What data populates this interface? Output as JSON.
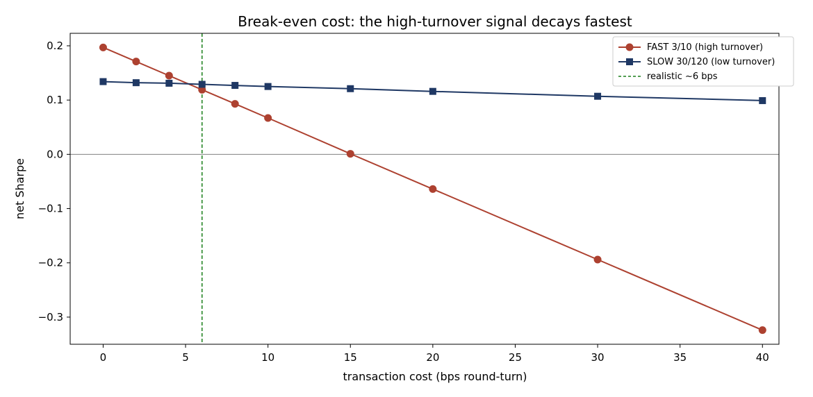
{
  "chart_data": {
    "type": "line",
    "title": "Break-even cost: the high-turnover signal decays fastest",
    "xlabel": "transaction cost (bps round-turn)",
    "ylabel": "net Sharpe",
    "xlim": [
      -2,
      41
    ],
    "ylim": [
      -0.35,
      0.223
    ],
    "x_ticks": [
      0,
      5,
      10,
      15,
      20,
      25,
      30,
      35,
      40
    ],
    "x_tick_labels": [
      "0",
      "5",
      "10",
      "15",
      "20",
      "25",
      "30",
      "35",
      "40"
    ],
    "y_ticks": [
      0.2,
      0.1,
      0.0,
      -0.1,
      -0.2,
      -0.3
    ],
    "y_tick_labels": [
      "0.2",
      "0.1",
      "0.0",
      "−0.1",
      "−0.2",
      "−0.3"
    ],
    "x": [
      0,
      2,
      4,
      6,
      8,
      10,
      15,
      20,
      30,
      40
    ],
    "series": [
      {
        "name": "FAST 3/10 (high turnover)",
        "color": "#ad4130",
        "marker": "circle",
        "values": [
          0.197,
          0.171,
          0.145,
          0.119,
          0.093,
          0.067,
          0.001,
          -0.064,
          -0.194,
          -0.324
        ]
      },
      {
        "name": "SLOW 30/120 (low turnover)",
        "color": "#1f3864",
        "marker": "square",
        "values": [
          0.134,
          0.132,
          0.131,
          0.129,
          0.127,
          0.125,
          0.121,
          0.116,
          0.107,
          0.099
        ]
      }
    ],
    "vline": {
      "x": 6,
      "label": "realistic ~6 bps",
      "color": "#1a7f1a",
      "style": "dashed"
    },
    "hline": {
      "y": 0,
      "color": "#808080"
    },
    "legend_position": "top-right",
    "grid": false
  }
}
